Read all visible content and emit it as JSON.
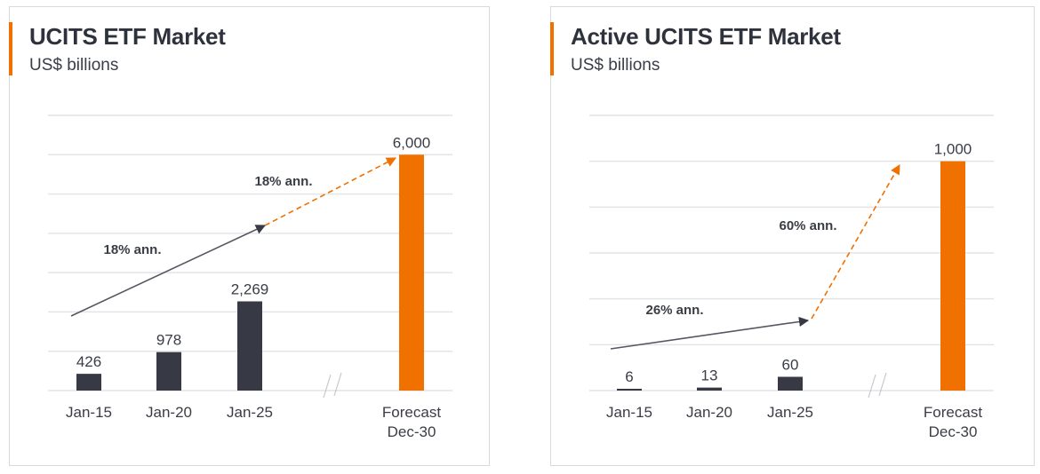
{
  "colors": {
    "accent": "#f07000",
    "bar": "#373a44",
    "grid": "#e3e4e8",
    "text": "#3a3d46"
  },
  "chart_data": [
    {
      "type": "bar",
      "title": "UCITS ETF Market",
      "subtitle": "US$ billions",
      "categories": [
        "Jan-15",
        "Jan-20",
        "Jan-25",
        "Forecast Dec-30"
      ],
      "category_lines": [
        [
          "Jan-15"
        ],
        [
          "Jan-20"
        ],
        [
          "Jan-25"
        ],
        [
          "Forecast",
          "Dec-30"
        ]
      ],
      "values": [
        426,
        978,
        2269,
        6000
      ],
      "value_labels": [
        "426",
        "978",
        "2,269",
        "6,000"
      ],
      "highlight": [
        false,
        false,
        false,
        true
      ],
      "ylim": [
        0,
        7000
      ],
      "grid_step": 1000,
      "grid": true,
      "axis_break": "between Jan-25 and Forecast Dec-30",
      "annotations": [
        {
          "text": "18% ann.",
          "style": "solid",
          "from": "Jan-15",
          "to": "Jan-25"
        },
        {
          "text": "18% ann.",
          "style": "dashed",
          "from": "Jan-25",
          "to": "Forecast Dec-30"
        }
      ]
    },
    {
      "type": "bar",
      "title": "Active UCITS ETF Market",
      "subtitle": "US$ billions",
      "categories": [
        "Jan-15",
        "Jan-20",
        "Jan-25",
        "Forecast Dec-30"
      ],
      "category_lines": [
        [
          "Jan-15"
        ],
        [
          "Jan-20"
        ],
        [
          "Jan-25"
        ],
        [
          "Forecast",
          "Dec-30"
        ]
      ],
      "values": [
        6,
        13,
        60,
        1000
      ],
      "value_labels": [
        "6",
        "13",
        "60",
        "1,000"
      ],
      "highlight": [
        false,
        false,
        false,
        true
      ],
      "ylim": [
        0,
        1200
      ],
      "grid_step": 200,
      "grid": true,
      "axis_break": "between Jan-25 and Forecast Dec-30",
      "annotations": [
        {
          "text": "26% ann.",
          "style": "solid",
          "from": "Jan-15",
          "to": "Jan-25"
        },
        {
          "text": "60% ann.",
          "style": "dashed",
          "from": "Jan-25",
          "to": "Forecast Dec-30"
        }
      ]
    }
  ]
}
